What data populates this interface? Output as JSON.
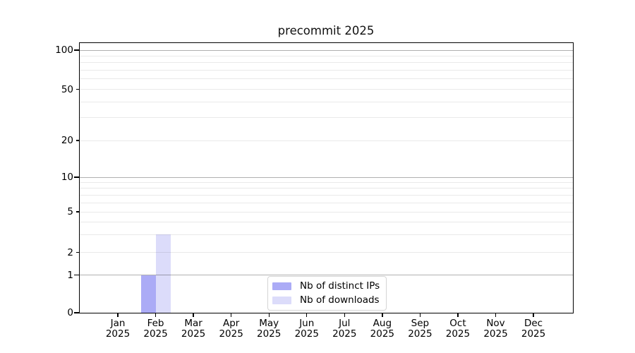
{
  "chart_data": {
    "type": "bar",
    "title": "precommit 2025",
    "x_axis": {
      "categories": [
        "Jan",
        "Feb",
        "Mar",
        "Apr",
        "May",
        "Jun",
        "Jul",
        "Aug",
        "Sep",
        "Oct",
        "Nov",
        "Dec"
      ],
      "sublabel": "2025"
    },
    "series": [
      {
        "name": "Nb of distinct IPs",
        "color": "#ababf6",
        "values": [
          0,
          1,
          0,
          0,
          0,
          0,
          0,
          0,
          0,
          0,
          0,
          0
        ]
      },
      {
        "name": "Nb of downloads",
        "color": "#dcdcfa",
        "values": [
          0,
          3,
          0,
          0,
          0,
          0,
          0,
          0,
          0,
          0,
          0,
          0
        ]
      }
    ],
    "y_axis": {
      "scale": "log-with-zero",
      "tick_labels": [
        0,
        1,
        2,
        5,
        10,
        20,
        50,
        100
      ],
      "strong_grid_ticks": [
        1,
        10,
        100
      ],
      "minor_grid_values": [
        3,
        4,
        6,
        7,
        8,
        9,
        30,
        40,
        60,
        70,
        80,
        90
      ],
      "range": [
        0,
        113
      ]
    },
    "legend": {
      "position": "lower-center-inside"
    },
    "colors": {
      "grid_major": "#b0b0b0",
      "grid_minor": "#eaeaea",
      "axis": "#000000",
      "background": "#ffffff"
    }
  }
}
